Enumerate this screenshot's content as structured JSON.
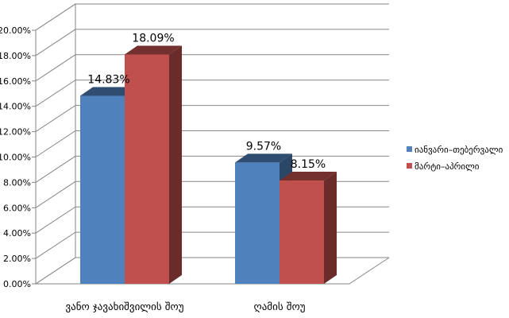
{
  "chart_data": {
    "type": "bar",
    "style": "3d-clustered-column",
    "categories": [
      "ვანო ჯავახიშვილის შოუ",
      "ღამის შოუ"
    ],
    "series": [
      {
        "name": "იანვარი–თებერვალი",
        "color": "#4F81BD",
        "values": [
          14.83,
          9.57
        ],
        "labels": [
          "14.83%",
          "9.57%"
        ]
      },
      {
        "name": "მარტი–აპრილი",
        "color": "#C0504D",
        "values": [
          18.09,
          8.15
        ],
        "labels": [
          "18.09%",
          "8.15%"
        ]
      }
    ],
    "ylim": [
      0,
      20
    ],
    "yticks": [
      "0.00%",
      "2.00%",
      "4.00%",
      "6.00%",
      "8.00%",
      "10.00%",
      "12.00%",
      "14.00%",
      "16.00%",
      "18.00%",
      "20.00%"
    ],
    "grid": true,
    "legend_position": "right"
  }
}
